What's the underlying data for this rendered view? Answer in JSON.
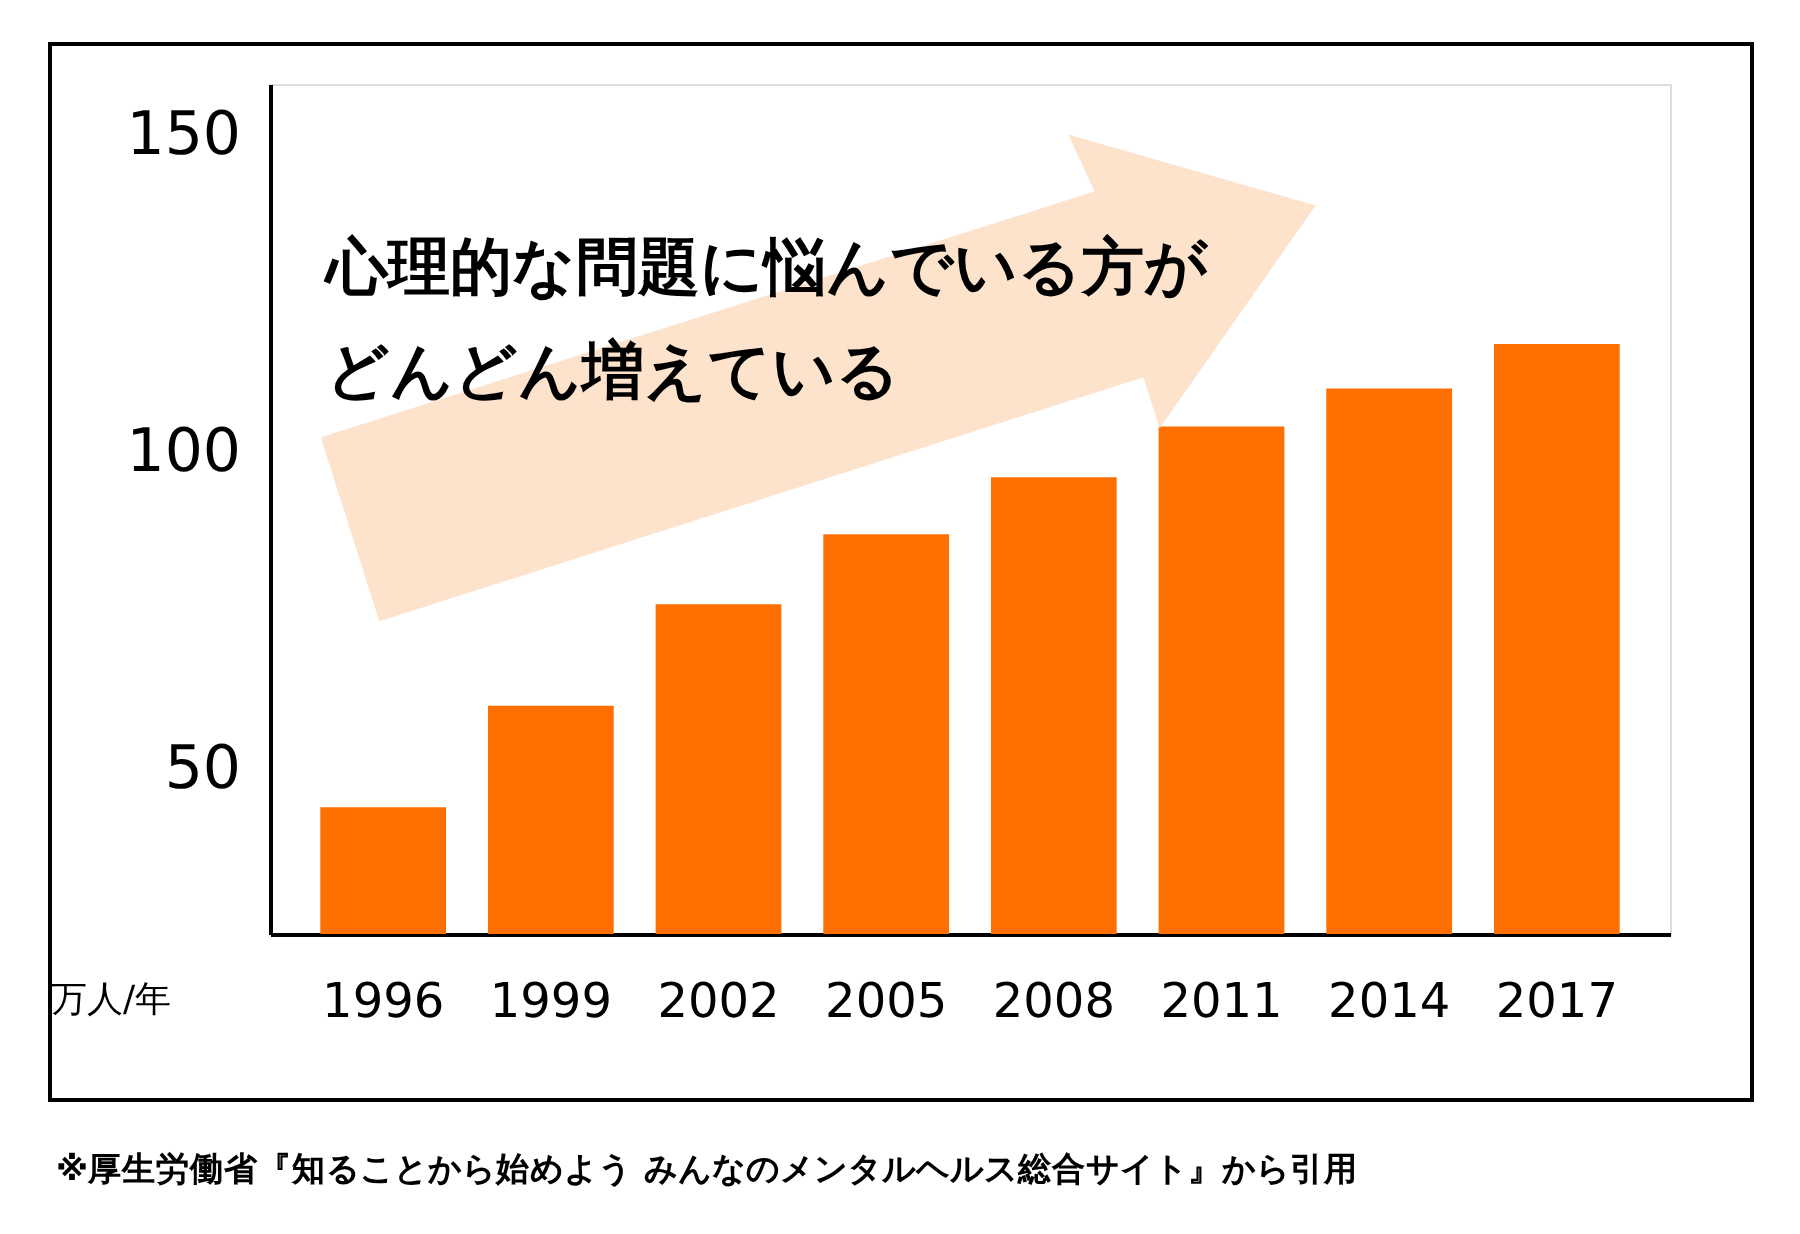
{
  "chart_data": {
    "type": "bar",
    "categories": [
      "1996",
      "1999",
      "2002",
      "2005",
      "2008",
      "2011",
      "2014",
      "2017"
    ],
    "values": [
      44,
      60,
      76,
      87,
      96,
      104,
      110,
      117
    ],
    "color": "#ff6f00",
    "ylabel": "万人/年",
    "ylim": [
      24,
      158
    ],
    "yticks": [
      50,
      100,
      150
    ],
    "grid": false,
    "annotations": [
      "心理的な問題に悩んでいる方が",
      "どんどん増えている",
      "※厚生労働省『知ることから始めよう みんなのメンタルヘルス総合サイト』から引用"
    ]
  }
}
